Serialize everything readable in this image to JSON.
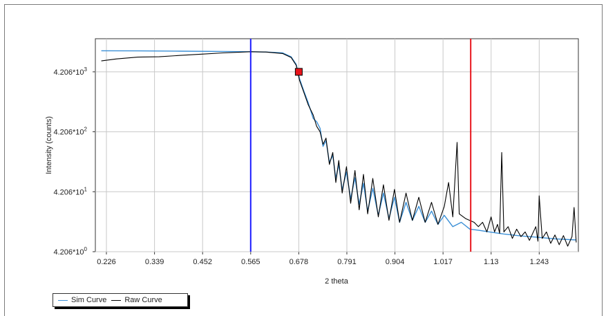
{
  "chart_data": {
    "type": "line",
    "title": "",
    "xlabel": "2 theta",
    "ylabel": "Intensity (counts)",
    "x_ticks": [
      "0.226",
      "0.339",
      "0.452",
      "0.565",
      "0.678",
      "0.791",
      "0.904",
      "1.017",
      "1.13",
      "1.243"
    ],
    "y_ticks": [
      "4.206*10^3",
      "4.206*10^2",
      "4.206*10^1",
      "4.206*10^0"
    ],
    "xlim": [
      0.2,
      1.335
    ],
    "ylim": [
      4.206,
      15000
    ],
    "y_scale": "log",
    "grid": true,
    "vertical_markers": [
      {
        "x": 0.565,
        "color": "#1a1aff"
      },
      {
        "x": 1.082,
        "color": "#e8141b"
      }
    ],
    "point_marker": {
      "x": 0.678,
      "y": 4206,
      "color": "#e8141b"
    },
    "legend_position": "bottom-left",
    "series": [
      {
        "name": "Sim Curve",
        "color": "#3a8fd6",
        "points": [
          [
            0.214,
            9450
          ],
          [
            0.3,
            9400
          ],
          [
            0.4,
            9300
          ],
          [
            0.5,
            9200
          ],
          [
            0.565,
            9100
          ],
          [
            0.6,
            9000
          ],
          [
            0.64,
            8700
          ],
          [
            0.66,
            7500
          ],
          [
            0.672,
            5600
          ],
          [
            0.68,
            3200
          ],
          [
            0.69,
            2000
          ],
          [
            0.7,
            1300
          ],
          [
            0.712,
            700
          ],
          [
            0.72,
            620
          ],
          [
            0.728,
            480
          ],
          [
            0.735,
            240
          ],
          [
            0.742,
            300
          ],
          [
            0.75,
            130
          ],
          [
            0.758,
            170
          ],
          [
            0.765,
            70
          ],
          [
            0.772,
            120
          ],
          [
            0.78,
            45
          ],
          [
            0.79,
            90
          ],
          [
            0.8,
            32
          ],
          [
            0.81,
            72
          ],
          [
            0.82,
            26
          ],
          [
            0.83,
            58
          ],
          [
            0.84,
            20
          ],
          [
            0.852,
            48
          ],
          [
            0.865,
            17
          ],
          [
            0.877,
            40
          ],
          [
            0.89,
            15
          ],
          [
            0.903,
            34
          ],
          [
            0.915,
            13
          ],
          [
            0.93,
            28
          ],
          [
            0.945,
            14
          ],
          [
            0.96,
            24
          ],
          [
            0.975,
            13
          ],
          [
            0.99,
            20
          ],
          [
            1.005,
            12
          ],
          [
            1.02,
            17
          ],
          [
            1.04,
            11
          ],
          [
            1.06,
            13
          ],
          [
            1.08,
            10
          ],
          [
            1.1,
            9.6
          ],
          [
            1.13,
            8.9
          ],
          [
            1.16,
            8.3
          ],
          [
            1.2,
            7.7
          ],
          [
            1.24,
            7.3
          ],
          [
            1.28,
            6.9
          ],
          [
            1.33,
            6.6
          ]
        ]
      },
      {
        "name": "Raw Curve",
        "color": "#000000",
        "points": [
          [
            0.214,
            6400
          ],
          [
            0.25,
            6900
          ],
          [
            0.3,
            7400
          ],
          [
            0.35,
            7500
          ],
          [
            0.4,
            7900
          ],
          [
            0.45,
            8300
          ],
          [
            0.5,
            8700
          ],
          [
            0.565,
            9100
          ],
          [
            0.6,
            9000
          ],
          [
            0.64,
            8500
          ],
          [
            0.66,
            7300
          ],
          [
            0.672,
            5400
          ],
          [
            0.68,
            3000
          ],
          [
            0.69,
            1900
          ],
          [
            0.7,
            1200
          ],
          [
            0.712,
            800
          ],
          [
            0.72,
            520
          ],
          [
            0.728,
            420
          ],
          [
            0.735,
            260
          ],
          [
            0.742,
            330
          ],
          [
            0.75,
            120
          ],
          [
            0.758,
            190
          ],
          [
            0.765,
            60
          ],
          [
            0.772,
            140
          ],
          [
            0.78,
            40
          ],
          [
            0.79,
            110
          ],
          [
            0.8,
            27
          ],
          [
            0.81,
            95
          ],
          [
            0.82,
            21
          ],
          [
            0.83,
            82
          ],
          [
            0.84,
            18
          ],
          [
            0.852,
            70
          ],
          [
            0.865,
            16
          ],
          [
            0.877,
            55
          ],
          [
            0.89,
            14
          ],
          [
            0.903,
            46
          ],
          [
            0.915,
            13
          ],
          [
            0.93,
            40
          ],
          [
            0.945,
            14
          ],
          [
            0.96,
            34
          ],
          [
            0.975,
            13
          ],
          [
            0.99,
            28
          ],
          [
            1.005,
            12
          ],
          [
            1.02,
            24
          ],
          [
            1.03,
            60
          ],
          [
            1.04,
            16
          ],
          [
            1.05,
            280
          ],
          [
            1.055,
            18
          ],
          [
            1.07,
            15
          ],
          [
            1.09,
            13
          ],
          [
            1.1,
            11
          ],
          [
            1.11,
            13
          ],
          [
            1.12,
            9
          ],
          [
            1.13,
            16
          ],
          [
            1.138,
            9
          ],
          [
            1.145,
            12
          ],
          [
            1.15,
            8.5
          ],
          [
            1.155,
            190
          ],
          [
            1.16,
            9
          ],
          [
            1.17,
            11
          ],
          [
            1.18,
            7
          ],
          [
            1.19,
            10
          ],
          [
            1.2,
            7.5
          ],
          [
            1.21,
            9
          ],
          [
            1.22,
            6.5
          ],
          [
            1.235,
            11
          ],
          [
            1.24,
            6.3
          ],
          [
            1.243,
            36
          ],
          [
            1.25,
            7
          ],
          [
            1.26,
            9
          ],
          [
            1.27,
            5.8
          ],
          [
            1.28,
            8
          ],
          [
            1.29,
            5.5
          ],
          [
            1.3,
            7.8
          ],
          [
            1.31,
            5.2
          ],
          [
            1.32,
            7.5
          ],
          [
            1.325,
            23
          ],
          [
            1.33,
            6
          ]
        ]
      }
    ]
  }
}
